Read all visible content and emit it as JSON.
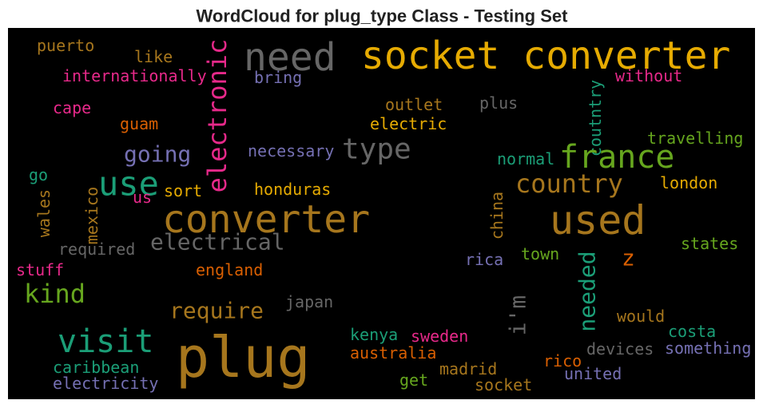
{
  "chart_data": {
    "type": "wordcloud",
    "title": "WordCloud for plug_type Class - Testing Set",
    "words": [
      "puerto",
      "like",
      "internationally",
      "bring",
      "need",
      "socket converter",
      "electronic",
      "without",
      "coutntry",
      "cape",
      "guam",
      "outlet",
      "plus",
      "electric",
      "type",
      "going",
      "necessary",
      "france",
      "travelling",
      "normal",
      "go",
      "use",
      "us",
      "sort",
      "honduras",
      "country",
      "london",
      "wales",
      "mexico",
      "converter",
      "used",
      "china",
      "electrical",
      "required",
      "states",
      "stuff",
      "england",
      "z",
      "rica",
      "town",
      "kind",
      "needed",
      "i'm",
      "japan",
      "require",
      "would",
      "visit",
      "plug",
      "kenya",
      "sweden",
      "costa",
      "australia",
      "devices",
      "something",
      "caribbean",
      "rico",
      "madrid",
      "united",
      "electricity",
      "get",
      "socket"
    ]
  }
}
